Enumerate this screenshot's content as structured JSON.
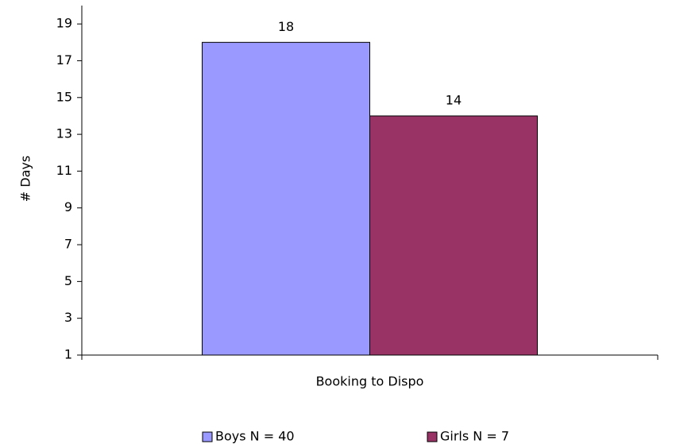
{
  "chart_data": {
    "type": "bar",
    "y_label": "# Days",
    "categories": [
      "Booking to Dispo"
    ],
    "series": [
      {
        "name": "Boys N = 40",
        "color": "#9999ff",
        "values": [
          18
        ]
      },
      {
        "name": "Girls N = 7",
        "color": "#993366",
        "values": [
          14
        ]
      }
    ],
    "ylim": [
      1,
      20
    ],
    "yticks": [
      1,
      3,
      5,
      7,
      9,
      11,
      13,
      15,
      17,
      19
    ],
    "grid": false,
    "legend": "bottom"
  }
}
